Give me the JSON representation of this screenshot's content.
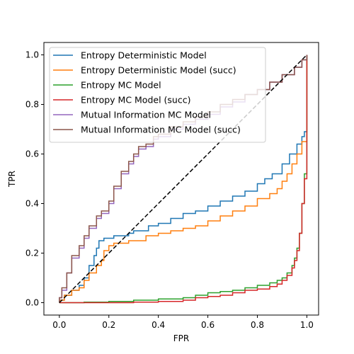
{
  "chart_data": {
    "type": "line",
    "title": "",
    "xlabel": "FPR",
    "ylabel": "TPR",
    "xlim": [
      -0.0625,
      1.0475
    ],
    "ylim": [
      -0.05,
      1.05
    ],
    "xticks": [
      0.0,
      0.2,
      0.4,
      0.6,
      0.8,
      1.0
    ],
    "xtick_labels": [
      "0.0",
      "0.2",
      "0.4",
      "0.6",
      "0.8",
      "1.0"
    ],
    "yticks": [
      0.0,
      0.2,
      0.4,
      0.6,
      0.8,
      1.0
    ],
    "ytick_labels": [
      "0.0",
      "0.2",
      "0.4",
      "0.6",
      "0.8",
      "1.0"
    ],
    "grid": false,
    "legend_position": "top-left",
    "reference_line": {
      "x": [
        0,
        1
      ],
      "y": [
        0,
        1
      ],
      "color": "#000000",
      "style": "dashed"
    },
    "series": [
      {
        "name": "Entropy Deterministic Model",
        "color": "#1f77b4",
        "x": [
          0.0,
          0.0,
          0.02,
          0.05,
          0.08,
          0.1,
          0.12,
          0.14,
          0.15,
          0.16,
          0.18,
          0.2,
          0.22,
          0.25,
          0.28,
          0.3,
          0.33,
          0.36,
          0.4,
          0.45,
          0.5,
          0.55,
          0.6,
          0.65,
          0.7,
          0.75,
          0.8,
          0.83,
          0.86,
          0.9,
          0.93,
          0.96,
          0.98,
          0.99,
          1.0,
          1.0
        ],
        "y": [
          0.0,
          0.01,
          0.03,
          0.05,
          0.07,
          0.1,
          0.15,
          0.19,
          0.22,
          0.25,
          0.26,
          0.26,
          0.27,
          0.27,
          0.28,
          0.29,
          0.29,
          0.31,
          0.32,
          0.34,
          0.36,
          0.37,
          0.39,
          0.41,
          0.43,
          0.45,
          0.48,
          0.5,
          0.52,
          0.56,
          0.6,
          0.64,
          0.67,
          0.69,
          0.7,
          1.0
        ]
      },
      {
        "name": "Entropy Deterministic Model (succ)",
        "color": "#ff7f0e",
        "x": [
          0.0,
          0.0,
          0.02,
          0.05,
          0.08,
          0.1,
          0.12,
          0.15,
          0.17,
          0.18,
          0.2,
          0.22,
          0.25,
          0.28,
          0.3,
          0.35,
          0.4,
          0.45,
          0.5,
          0.55,
          0.6,
          0.65,
          0.7,
          0.75,
          0.8,
          0.85,
          0.88,
          0.9,
          0.92,
          0.94,
          0.96,
          0.98,
          1.0,
          1.0
        ],
        "y": [
          0.0,
          0.01,
          0.03,
          0.05,
          0.06,
          0.09,
          0.12,
          0.15,
          0.17,
          0.21,
          0.23,
          0.24,
          0.24,
          0.25,
          0.25,
          0.27,
          0.28,
          0.29,
          0.3,
          0.31,
          0.33,
          0.35,
          0.37,
          0.39,
          0.42,
          0.44,
          0.46,
          0.49,
          0.52,
          0.56,
          0.6,
          0.65,
          0.68,
          1.0
        ]
      },
      {
        "name": "Entropy MC Model",
        "color": "#2ca02c",
        "x": [
          0.0,
          0.1,
          0.2,
          0.3,
          0.4,
          0.5,
          0.55,
          0.6,
          0.65,
          0.7,
          0.75,
          0.8,
          0.85,
          0.88,
          0.9,
          0.92,
          0.94,
          0.95,
          0.96,
          0.97,
          0.98,
          0.99,
          1.0
        ],
        "y": [
          0.0,
          0.002,
          0.005,
          0.01,
          0.015,
          0.02,
          0.03,
          0.04,
          0.045,
          0.05,
          0.06,
          0.07,
          0.08,
          0.09,
          0.1,
          0.12,
          0.15,
          0.18,
          0.22,
          0.28,
          0.4,
          0.52,
          1.0
        ]
      },
      {
        "name": "Entropy MC Model (succ)",
        "color": "#d62728",
        "x": [
          0.0,
          0.1,
          0.2,
          0.3,
          0.4,
          0.5,
          0.55,
          0.6,
          0.65,
          0.7,
          0.75,
          0.8,
          0.85,
          0.88,
          0.9,
          0.92,
          0.94,
          0.95,
          0.96,
          0.97,
          0.98,
          0.99,
          1.0,
          1.0
        ],
        "y": [
          0.0,
          0.0,
          0.0,
          0.002,
          0.005,
          0.01,
          0.02,
          0.025,
          0.03,
          0.04,
          0.05,
          0.055,
          0.065,
          0.075,
          0.09,
          0.11,
          0.14,
          0.17,
          0.21,
          0.28,
          0.4,
          0.5,
          0.75,
          1.0
        ]
      },
      {
        "name": "Mutual Information MC Model",
        "color": "#9467bd",
        "x": [
          0.0,
          0.0,
          0.01,
          0.03,
          0.05,
          0.08,
          0.1,
          0.12,
          0.15,
          0.17,
          0.2,
          0.22,
          0.25,
          0.28,
          0.3,
          0.32,
          0.35,
          0.38,
          0.4,
          0.45,
          0.5,
          0.55,
          0.6,
          0.65,
          0.7,
          0.75,
          0.8,
          0.85,
          0.9,
          0.95,
          0.98,
          1.0
        ],
        "y": [
          0.0,
          0.02,
          0.05,
          0.12,
          0.18,
          0.22,
          0.26,
          0.3,
          0.34,
          0.36,
          0.4,
          0.46,
          0.52,
          0.56,
          0.59,
          0.62,
          0.63,
          0.66,
          0.67,
          0.7,
          0.72,
          0.74,
          0.76,
          0.79,
          0.81,
          0.84,
          0.86,
          0.89,
          0.92,
          0.95,
          0.98,
          1.0
        ]
      },
      {
        "name": "Mutual Information MC Model (succ)",
        "color": "#8c564b",
        "x": [
          0.0,
          0.0,
          0.01,
          0.03,
          0.05,
          0.08,
          0.1,
          0.12,
          0.15,
          0.17,
          0.2,
          0.22,
          0.25,
          0.28,
          0.3,
          0.32,
          0.35,
          0.38,
          0.4,
          0.45,
          0.5,
          0.55,
          0.6,
          0.65,
          0.7,
          0.75,
          0.8,
          0.85,
          0.9,
          0.95,
          0.98,
          1.0
        ],
        "y": [
          0.0,
          0.02,
          0.06,
          0.12,
          0.19,
          0.23,
          0.27,
          0.31,
          0.35,
          0.37,
          0.41,
          0.47,
          0.53,
          0.57,
          0.6,
          0.63,
          0.64,
          0.67,
          0.68,
          0.71,
          0.73,
          0.75,
          0.77,
          0.8,
          0.82,
          0.84,
          0.86,
          0.89,
          0.92,
          0.95,
          0.98,
          1.0
        ]
      }
    ]
  }
}
